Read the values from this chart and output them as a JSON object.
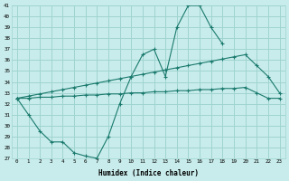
{
  "xlabel": "Humidex (Indice chaleur)",
  "bg_color": "#c8eceb",
  "grid_color": "#9fd4d0",
  "line_color": "#1a7a6e",
  "y_min": 27,
  "y_max": 41,
  "line1_x": [
    0,
    1,
    2,
    3,
    4,
    5,
    6,
    7,
    8,
    9,
    10,
    11,
    12,
    13,
    14,
    15,
    16,
    17,
    18
  ],
  "line1_y": [
    32.5,
    31.0,
    29.5,
    28.5,
    28.5,
    27.5,
    27.2,
    27.0,
    29.0,
    32.0,
    34.5,
    36.5,
    37.0,
    34.5,
    39.0,
    41.0,
    41.0,
    39.0,
    37.5
  ],
  "line2_x": [
    0,
    1,
    2,
    3,
    4,
    5,
    6,
    7,
    8,
    9,
    10,
    11,
    12,
    13,
    14,
    15,
    16,
    17,
    18,
    19,
    20,
    21,
    22,
    23
  ],
  "line2_y": [
    32.5,
    32.7,
    32.9,
    33.1,
    33.3,
    33.5,
    33.7,
    33.9,
    34.1,
    34.3,
    34.5,
    34.7,
    34.9,
    35.1,
    35.3,
    35.5,
    35.7,
    35.9,
    36.1,
    36.3,
    36.5,
    35.5,
    34.5,
    33.0
  ],
  "line3_x": [
    0,
    1,
    2,
    3,
    4,
    5,
    6,
    7,
    8,
    9,
    10,
    11,
    12,
    13,
    14,
    15,
    16,
    17,
    18,
    19,
    20,
    21,
    22,
    23
  ],
  "line3_y": [
    32.5,
    32.5,
    32.6,
    32.6,
    32.7,
    32.7,
    32.8,
    32.8,
    32.9,
    32.9,
    33.0,
    33.0,
    33.1,
    33.1,
    33.2,
    33.2,
    33.3,
    33.3,
    33.4,
    33.4,
    33.5,
    33.0,
    32.5,
    32.5
  ]
}
